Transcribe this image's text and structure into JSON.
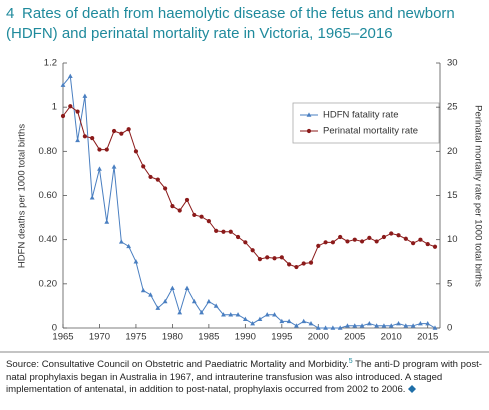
{
  "figure_number": "4",
  "chart_data": {
    "type": "line",
    "title": "Rates of death from haemolytic disease of the fetus and newborn (HDFN) and perinatal mortality rate in Victoria, 1965–2016",
    "ylabel": "HDFN deaths per 1000 total births",
    "y2label": "Perinatal mortality rate per 1000 total births",
    "x": [
      1965,
      1966,
      1967,
      1968,
      1969,
      1970,
      1971,
      1972,
      1973,
      1974,
      1975,
      1976,
      1977,
      1978,
      1979,
      1980,
      1981,
      1982,
      1983,
      1984,
      1985,
      1986,
      1987,
      1988,
      1989,
      1990,
      1991,
      1992,
      1993,
      1994,
      1995,
      1996,
      1997,
      1998,
      1999,
      2000,
      2001,
      2002,
      2003,
      2004,
      2005,
      2006,
      2007,
      2008,
      2009,
      2010,
      2011,
      2012,
      2013,
      2014,
      2015,
      2016
    ],
    "xlim": [
      1965,
      2016
    ],
    "xticks": [
      1965,
      1970,
      1975,
      1980,
      1985,
      1990,
      1995,
      2000,
      2005,
      2010,
      2015
    ],
    "ylim": [
      0,
      1.2
    ],
    "yticks": [
      0,
      {
        "value": 0.2,
        "label": "0.20"
      },
      {
        "value": 0.4,
        "label": "0.40"
      },
      {
        "value": 0.6,
        "label": "0.60"
      },
      {
        "value": 0.8,
        "label": "0.80"
      },
      1,
      1.2
    ],
    "y2lim": [
      0,
      30
    ],
    "y2ticks": [
      0,
      5,
      10,
      15,
      20,
      25,
      30
    ],
    "grid": false,
    "legend_position": "upper right",
    "series": [
      {
        "name": "HDFN fatality rate",
        "color": "#4a7fc1",
        "marker": "triangle",
        "values": [
          1.1,
          1.14,
          0.85,
          1.05,
          0.59,
          0.72,
          0.48,
          0.73,
          0.39,
          0.37,
          0.3,
          0.17,
          0.15,
          0.09,
          0.12,
          0.18,
          0.07,
          0.18,
          0.12,
          0.07,
          0.12,
          0.1,
          0.06,
          0.06,
          0.06,
          0.04,
          0.02,
          0.04,
          0.06,
          0.06,
          0.03,
          0.03,
          0.01,
          0.03,
          0.02,
          0,
          0,
          0,
          0,
          0.01,
          0.01,
          0.01,
          0.02,
          0.01,
          0.01,
          0.01,
          0.02,
          0.01,
          0.01,
          0.02,
          0.02,
          0
        ]
      },
      {
        "name": "Perinatal mortality rate",
        "color": "#8b1a1a",
        "marker": "circle",
        "axis": "y2",
        "values": [
          24,
          25.1,
          24.5,
          21.7,
          21.5,
          20.2,
          20.2,
          22.3,
          22,
          22.5,
          20,
          18.3,
          17.1,
          16.8,
          15.8,
          13.8,
          13.3,
          14.5,
          12.8,
          12.6,
          12.1,
          11,
          10.9,
          10.9,
          10.3,
          9.7,
          8.8,
          7.8,
          8,
          7.9,
          8,
          7.2,
          6.9,
          7.3,
          7.4,
          9.3,
          9.7,
          9.7,
          10.3,
          9.8,
          10,
          9.8,
          10.2,
          9.8,
          10.3,
          10.7,
          10.5,
          10.1,
          9.6,
          10,
          9.5,
          9.2
        ]
      }
    ]
  },
  "source": {
    "text": "Source: Consultative Council on Obstetric and Paediatric Mortality and Morbidity.",
    "ref": "5",
    "note": "The anti-D program with post-natal prophylaxis began in Australia in 1967, and intrauterine transfusion was also introduced. A staged implementation of antenatal, in addition to post-natal, prophylaxis occurred from 2002 to 2006."
  }
}
